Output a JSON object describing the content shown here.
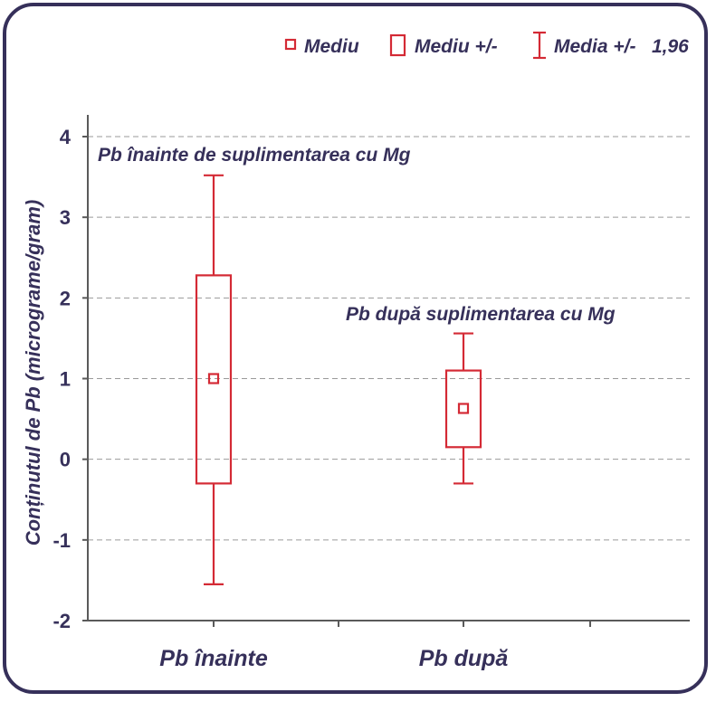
{
  "chart_data": {
    "type": "box",
    "ylabel": "Conținutul de Pb (micrograme/gram)",
    "ylim": [
      -2,
      4
    ],
    "yticks": [
      "4",
      "3",
      "2",
      "1",
      "0",
      "-1",
      "-2"
    ],
    "categories": [
      "Pb înainte",
      "Pb după"
    ],
    "annotations": [
      "Pb înainte de suplimentarea cu Mg",
      "Pb după suplimentarea cu Mg"
    ],
    "legend": {
      "placement": "top-right",
      "items": [
        "Mediu",
        "Mediu +/-",
        "Media +/-   1,96"
      ]
    },
    "grid": true,
    "series": [
      {
        "category": "Pb înainte",
        "mean": 1.0,
        "box_low": -0.3,
        "box_high": 2.28,
        "whisker_low": -1.55,
        "whisker_high": 3.52
      },
      {
        "category": "Pb după",
        "mean": 0.63,
        "box_low": 0.15,
        "box_high": 1.1,
        "whisker_low": -0.3,
        "whisker_high": 1.56
      }
    ],
    "colors": {
      "marks": "#d42a35",
      "axis": "#5a5a5a",
      "text": "#36305a",
      "grid": "#9a9a9a"
    }
  }
}
